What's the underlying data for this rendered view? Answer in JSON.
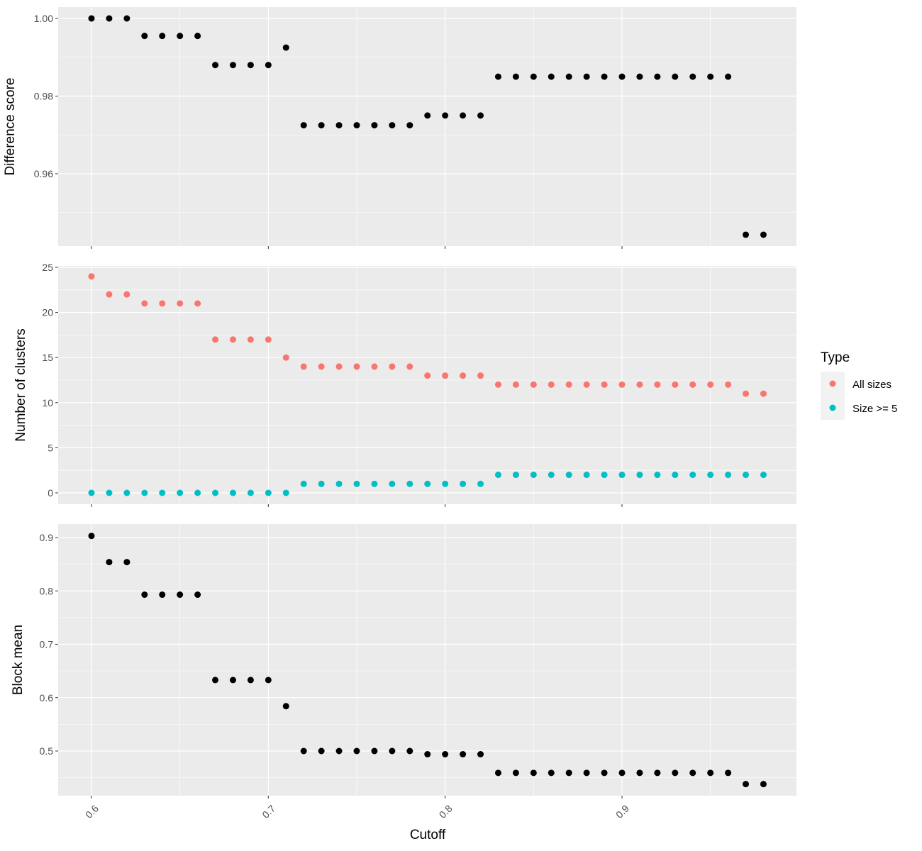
{
  "chart_data": {
    "type": "scatter",
    "xlabel": "Cutoff",
    "x_ticks": [
      "0.6",
      "0.7",
      "0.8",
      "0.9"
    ],
    "x": [
      0.6,
      0.61,
      0.62,
      0.63,
      0.64,
      0.65,
      0.66,
      0.67,
      0.68,
      0.69,
      0.7,
      0.71,
      0.72,
      0.73,
      0.74,
      0.75,
      0.76,
      0.77,
      0.78,
      0.79,
      0.8,
      0.81,
      0.82,
      0.83,
      0.84,
      0.85,
      0.86,
      0.87,
      0.88,
      0.89,
      0.9,
      0.91,
      0.92,
      0.93,
      0.94,
      0.95,
      0.96,
      0.97,
      0.98
    ],
    "panels": [
      {
        "ylabel": "Difference score",
        "y_ticks": [
          "0.96",
          "0.98",
          "1.00"
        ],
        "grid": true,
        "series": [
          {
            "color": "#000000",
            "values": [
              1.0,
              1.0,
              1.0,
              0.9955,
              0.9955,
              0.9955,
              0.9955,
              0.988,
              0.988,
              0.988,
              0.988,
              0.9925,
              0.9725,
              0.9725,
              0.9725,
              0.9725,
              0.9725,
              0.9725,
              0.9725,
              0.975,
              0.975,
              0.975,
              0.975,
              0.985,
              0.985,
              0.985,
              0.985,
              0.985,
              0.985,
              0.985,
              0.985,
              0.985,
              0.985,
              0.985,
              0.985,
              0.985,
              0.985,
              0.9443,
              0.9443
            ]
          }
        ]
      },
      {
        "ylabel": "Number of clusters",
        "y_ticks": [
          "0",
          "5",
          "10",
          "15",
          "20",
          "25"
        ],
        "grid": true,
        "series": [
          {
            "name": "All sizes",
            "color": "#F8766D",
            "values": [
              24,
              22,
              22,
              21,
              21,
              21,
              21,
              17,
              17,
              17,
              17,
              15,
              14,
              14,
              14,
              14,
              14,
              14,
              14,
              13,
              13,
              13,
              13,
              12,
              12,
              12,
              12,
              12,
              12,
              12,
              12,
              12,
              12,
              12,
              12,
              12,
              12,
              11,
              11
            ]
          },
          {
            "name": "Size >= 5",
            "color": "#00BFC4",
            "values": [
              0,
              0,
              0,
              0,
              0,
              0,
              0,
              0,
              0,
              0,
              0,
              0,
              1,
              1,
              1,
              1,
              1,
              1,
              1,
              1,
              1,
              1,
              1,
              2,
              2,
              2,
              2,
              2,
              2,
              2,
              2,
              2,
              2,
              2,
              2,
              2,
              2,
              2,
              2
            ]
          }
        ]
      },
      {
        "ylabel": "Block mean",
        "y_ticks": [
          "0.5",
          "0.6",
          "0.7",
          "0.8",
          "0.9"
        ],
        "grid": true,
        "series": [
          {
            "color": "#000000",
            "values": [
              0.903,
              0.854,
              0.854,
              0.793,
              0.793,
              0.793,
              0.793,
              0.633,
              0.633,
              0.633,
              0.633,
              0.584,
              0.5,
              0.5,
              0.5,
              0.5,
              0.5,
              0.5,
              0.5,
              0.494,
              0.494,
              0.494,
              0.494,
              0.459,
              0.459,
              0.459,
              0.459,
              0.459,
              0.459,
              0.459,
              0.459,
              0.459,
              0.459,
              0.459,
              0.459,
              0.459,
              0.459,
              0.438,
              0.438
            ]
          }
        ]
      }
    ],
    "legend": {
      "title": "Type",
      "placement": "right",
      "items": [
        {
          "label": "All sizes",
          "color": "#F8766D"
        },
        {
          "label": "Size >= 5",
          "color": "#00BFC4"
        }
      ]
    },
    "panel_background": "#EBEBEB",
    "grid_color": "#FFFFFF"
  }
}
